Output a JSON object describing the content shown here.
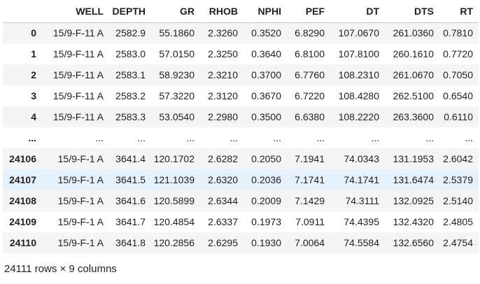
{
  "columns": [
    "",
    "WELL",
    "DEPTH",
    "GR",
    "RHOB",
    "NPHI",
    "PEF",
    "DT",
    "DTS",
    "RT"
  ],
  "rows": [
    [
      "0",
      "15/9-F-11 A",
      "2582.9",
      "55.1860",
      "2.3260",
      "0.3520",
      "6.8290",
      "107.0670",
      "261.0360",
      "0.7810"
    ],
    [
      "1",
      "15/9-F-11 A",
      "2583.0",
      "57.0150",
      "2.3250",
      "0.3640",
      "6.8100",
      "107.8100",
      "260.1610",
      "0.7720"
    ],
    [
      "2",
      "15/9-F-11 A",
      "2583.1",
      "58.9230",
      "2.3210",
      "0.3700",
      "6.7760",
      "108.2310",
      "261.0670",
      "0.7050"
    ],
    [
      "3",
      "15/9-F-11 A",
      "2583.2",
      "57.3220",
      "2.3120",
      "0.3670",
      "6.7220",
      "108.4280",
      "262.5100",
      "0.6540"
    ],
    [
      "4",
      "15/9-F-11 A",
      "2583.3",
      "53.0540",
      "2.2980",
      "0.3500",
      "6.6380",
      "108.2220",
      "263.3600",
      "0.6110"
    ],
    [
      "...",
      "...",
      "...",
      "...",
      "...",
      "...",
      "...",
      "...",
      "...",
      "..."
    ],
    [
      "24106",
      "15/9-F-1 A",
      "3641.4",
      "120.1702",
      "2.6282",
      "0.2050",
      "7.1941",
      "74.0343",
      "131.1953",
      "2.6042"
    ],
    [
      "24107",
      "15/9-F-1 A",
      "3641.5",
      "121.1039",
      "2.6320",
      "0.2036",
      "7.1741",
      "74.1741",
      "131.6474",
      "2.5379"
    ],
    [
      "24108",
      "15/9-F-1 A",
      "3641.6",
      "120.5899",
      "2.6344",
      "0.2009",
      "7.1429",
      "74.3111",
      "132.0925",
      "2.5140"
    ],
    [
      "24109",
      "15/9-F-1 A",
      "3641.7",
      "120.4854",
      "2.6337",
      "0.1973",
      "7.0911",
      "74.4395",
      "132.4320",
      "2.4805"
    ],
    [
      "24110",
      "15/9-F-1 A",
      "3641.8",
      "120.2856",
      "2.6295",
      "0.1930",
      "7.0064",
      "74.5584",
      "132.6560",
      "2.4754"
    ]
  ],
  "highlighted_row": "24107",
  "footer": "24111 rows × 9 columns"
}
